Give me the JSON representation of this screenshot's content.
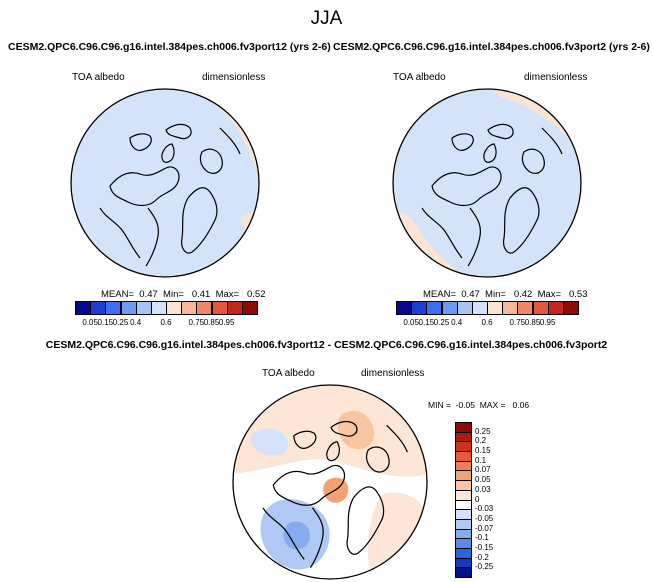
{
  "season": "JJA",
  "panels": [
    {
      "title": "CESM2.QPC6.C96.C96.g16.intel.384pes.ch006.fv3port12 (yrs 2-6)",
      "variable": "TOA albedo",
      "units": "dimensionless",
      "stats": "MEAN=  0.47  Min=   0.41  Max=   0.52"
    },
    {
      "title": "CESM2.QPC6.C96.C96.g16.intel.384pes.ch006.fv3port2 (yrs 2-6)",
      "variable": "TOA albedo",
      "units": "dimensionless",
      "stats": "MEAN=  0.47  Min=   0.42  Max=   0.53"
    },
    {
      "title": "CESM2.QPC6.C96.C96.g16.intel.384pes.ch006.fv3port12 - CESM2.QPC6.C96.C96.g16.intel.384pes.ch006.fv3port2",
      "variable": "TOA albedo",
      "units": "dimensionless",
      "stats": "MIN =  -0.05  MAX =   0.06"
    }
  ],
  "chart_data": [
    {
      "type": "heatmap",
      "projection": "north polar stereographic",
      "title": "CESM2.QPC6.C96.C96.g16.intel.384pes.ch006.fv3port12 (yrs 2-6)",
      "variable": "TOA albedo",
      "units": "dimensionless",
      "mean": 0.47,
      "min": 0.41,
      "max": 0.52,
      "colorbar_levels": [
        "0.05",
        "0.15",
        "0.25",
        "0.4",
        "0.6",
        "0.75",
        "0.85",
        "0.95"
      ],
      "colorbar_colors": [
        "#08088a",
        "#1c3fcf",
        "#3c6ef0",
        "#6b9cf2",
        "#a6c4f6",
        "#d2e3fa",
        "#fce4d4",
        "#f8b896",
        "#f08866",
        "#e05a3e",
        "#c0281a",
        "#8a0a04"
      ]
    },
    {
      "type": "heatmap",
      "projection": "north polar stereographic",
      "title": "CESM2.QPC6.C96.C96.g16.intel.384pes.ch006.fv3port2 (yrs 2-6)",
      "variable": "TOA albedo",
      "units": "dimensionless",
      "mean": 0.47,
      "min": 0.42,
      "max": 0.53,
      "colorbar_levels": [
        "0.05",
        "0.15",
        "0.25",
        "0.4",
        "0.6",
        "0.75",
        "0.85",
        "0.95"
      ],
      "colorbar_colors": [
        "#08088a",
        "#1c3fcf",
        "#3c6ef0",
        "#6b9cf2",
        "#a6c4f6",
        "#d2e3fa",
        "#fce4d4",
        "#f8b896",
        "#f08866",
        "#e05a3e",
        "#c0281a",
        "#8a0a04"
      ]
    },
    {
      "type": "heatmap",
      "projection": "north polar stereographic",
      "title": "CESM2.QPC6.C96.C96.g16.intel.384pes.ch006.fv3port12 - CESM2.QPC6.C96.C96.g16.intel.384pes.ch006.fv3port2",
      "variable": "TOA albedo",
      "units": "dimensionless",
      "min": -0.05,
      "max": 0.06,
      "colorbar_levels": [
        "0.25",
        "0.2",
        "0.15",
        "0.1",
        "0.07",
        "0.05",
        "0.03",
        "0",
        "-0.03",
        "-0.05",
        "-0.07",
        "-0.1",
        "-0.15",
        "-0.2",
        "-0.25"
      ],
      "colorbar_colors": [
        "#8a0a04",
        "#b01a0c",
        "#d23018",
        "#e85a34",
        "#f07c50",
        "#f5a070",
        "#f9c4a0",
        "#fde6d6",
        "#ffffff",
        "#d4e2fa",
        "#b0c8f6",
        "#88aaf2",
        "#5c88ee",
        "#3060e0",
        "#1838c0",
        "#06108a"
      ]
    }
  ]
}
